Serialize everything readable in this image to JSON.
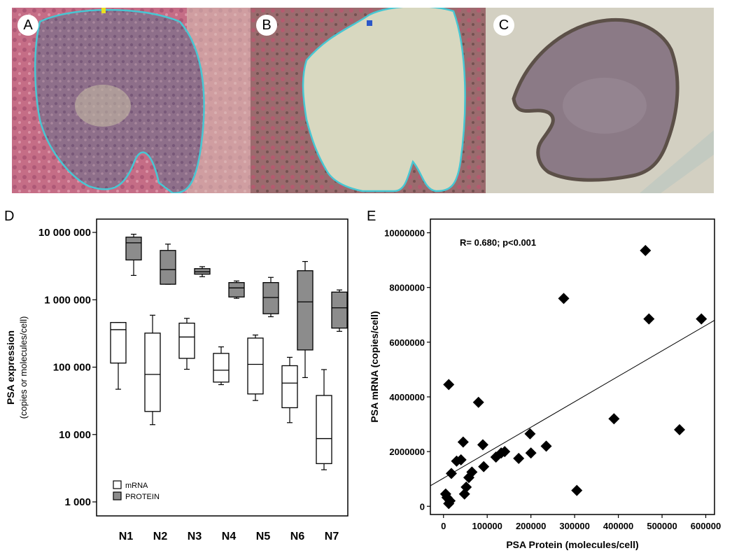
{
  "panels": {
    "a": {
      "letter": "A"
    },
    "b": {
      "letter": "B"
    },
    "c": {
      "letter": "C"
    },
    "d": {
      "letter": "D"
    },
    "e": {
      "letter": "E"
    }
  },
  "colors": {
    "tissue_pink": "#c8627e",
    "outline_cyan": "#47c7d3",
    "cavity_beige": "#d8d8c0",
    "sample_purple": "#8b7a86",
    "protein_box": "#8c8c8c",
    "mrna_box": "#ffffff"
  },
  "chart_data": [
    {
      "type": "box",
      "ylabel": "PSA expression",
      "ylabel_sub": "(copies or molecules/cell)",
      "y_scale": "log",
      "ylim": [
        1000,
        10000000
      ],
      "yticks": [
        {
          "value": 1000,
          "label": "1 000"
        },
        {
          "value": 10000,
          "label": "10 000"
        },
        {
          "value": 100000,
          "label": "100 000"
        },
        {
          "value": 1000000,
          "label": "1 000 000"
        },
        {
          "value": 10000000,
          "label": "10 000 000"
        }
      ],
      "categories": [
        "N1",
        "N2",
        "N3",
        "N4",
        "N5",
        "N6",
        "N7"
      ],
      "legend": {
        "placement": "bottom-left",
        "entries": [
          "mRNA",
          "PROTEIN"
        ]
      },
      "series": [
        {
          "name": "mRNA",
          "color": "#ffffff",
          "boxes": [
            {
              "min": 47000,
              "q1": 115000,
              "median": 360000,
              "q3": 460000,
              "max": 460000
            },
            {
              "min": 14000,
              "q1": 22000,
              "median": 78000,
              "q3": 320000,
              "max": 590000
            },
            {
              "min": 93000,
              "q1": 135000,
              "median": 280000,
              "q3": 450000,
              "max": 530000
            },
            {
              "min": 55000,
              "q1": 60000,
              "median": 90000,
              "q3": 160000,
              "max": 200000
            },
            {
              "min": 32000,
              "q1": 40000,
              "median": 110000,
              "q3": 270000,
              "max": 300000
            },
            {
              "min": 15000,
              "q1": 25000,
              "median": 58000,
              "q3": 105000,
              "max": 140000
            },
            {
              "min": 3000,
              "q1": 3700,
              "median": 8700,
              "q3": 38000,
              "max": 92000
            }
          ]
        },
        {
          "name": "PROTEIN",
          "color": "#8c8c8c",
          "boxes": [
            {
              "min": 2300000,
              "q1": 3900000,
              "median": 7000000,
              "q3": 8500000,
              "max": 9400000
            },
            {
              "min": 1700000,
              "q1": 1700000,
              "median": 2800000,
              "q3": 5400000,
              "max": 6700000
            },
            {
              "min": 2200000,
              "q1": 2400000,
              "median": 2600000,
              "q3": 2900000,
              "max": 3100000
            },
            {
              "min": 1050000,
              "q1": 1100000,
              "median": 1500000,
              "q3": 1800000,
              "max": 1900000
            },
            {
              "min": 560000,
              "q1": 620000,
              "median": 1080000,
              "q3": 1800000,
              "max": 2150000
            },
            {
              "min": 70000,
              "q1": 180000,
              "median": 930000,
              "q3": 2700000,
              "max": 3700000
            },
            {
              "min": 340000,
              "q1": 380000,
              "median": 760000,
              "q3": 1300000,
              "max": 1400000
            }
          ]
        }
      ]
    },
    {
      "type": "scatter",
      "xlabel": "PSA Protein (molecules/cell)",
      "ylabel": "PSA mRNA (copies/cell)",
      "xlim": [
        -30000,
        620000
      ],
      "ylim": [
        -300000,
        10500000
      ],
      "xticks": [
        0,
        100000,
        200000,
        300000,
        400000,
        500000,
        600000
      ],
      "yticks": [
        0,
        2000000,
        4000000,
        6000000,
        8000000,
        10000000
      ],
      "annotation": "R= 0.680; p<0.001",
      "trendline": {
        "x": [
          -30000,
          620000
        ],
        "y": [
          750000,
          6800000
        ]
      },
      "points": [
        [
          5000,
          450000
        ],
        [
          8000,
          320000
        ],
        [
          12000,
          100000
        ],
        [
          15000,
          200000
        ],
        [
          18000,
          1200000
        ],
        [
          12000,
          4450000
        ],
        [
          30000,
          1650000
        ],
        [
          40000,
          1700000
        ],
        [
          45000,
          2350000
        ],
        [
          48000,
          450000
        ],
        [
          52000,
          700000
        ],
        [
          58000,
          1050000
        ],
        [
          65000,
          1250000
        ],
        [
          80000,
          3800000
        ],
        [
          90000,
          2250000
        ],
        [
          92000,
          1450000
        ],
        [
          120000,
          1800000
        ],
        [
          132000,
          1950000
        ],
        [
          140000,
          2000000
        ],
        [
          172000,
          1750000
        ],
        [
          198000,
          2650000
        ],
        [
          200000,
          1950000
        ],
        [
          235000,
          2200000
        ],
        [
          275000,
          7600000
        ],
        [
          305000,
          580000
        ],
        [
          390000,
          3200000
        ],
        [
          462000,
          9350000
        ],
        [
          470000,
          6850000
        ],
        [
          540000,
          2800000
        ],
        [
          590000,
          6850000
        ]
      ]
    }
  ]
}
